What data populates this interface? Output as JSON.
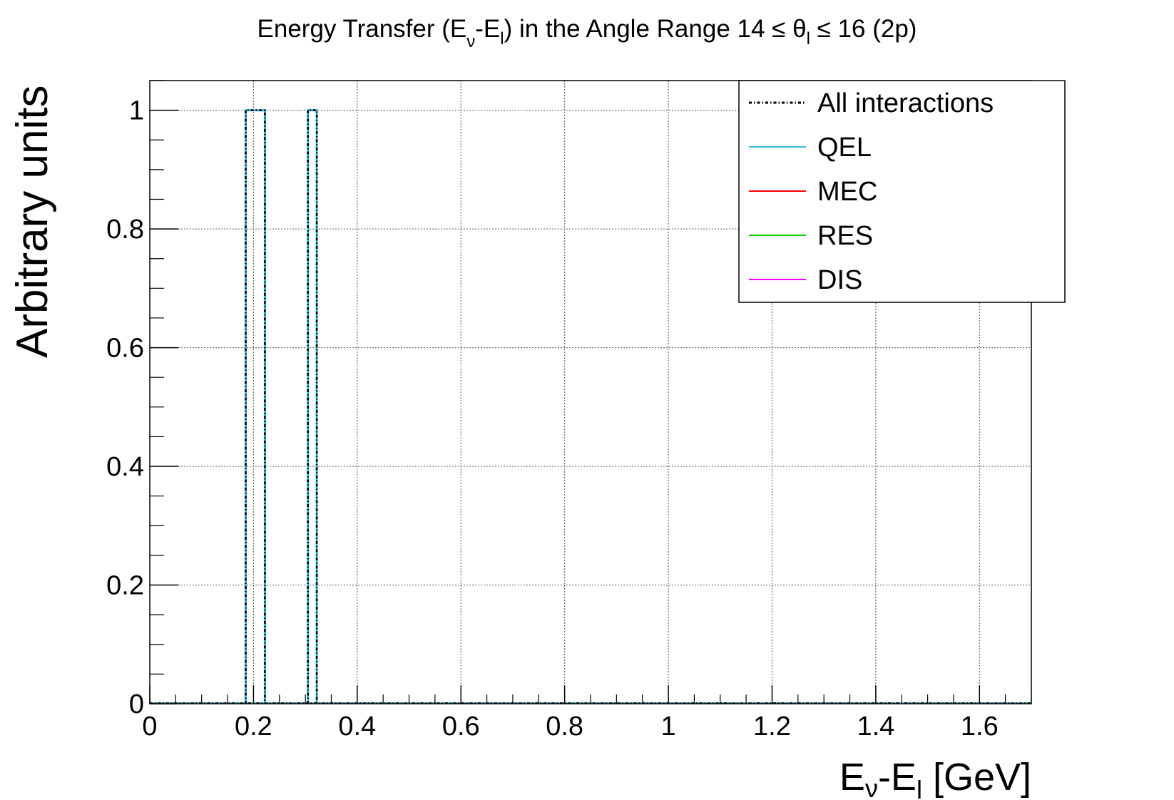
{
  "chart_data": {
    "type": "histogram",
    "title": {
      "base": "Energy Transfer (E",
      "sub_nu": "ν",
      "mid": "-E",
      "sub_l": "l",
      "rest": ") in the Angle Range 14  ≤ θ",
      "sub_l2": "l",
      "end": " ≤ 16 (2p)"
    },
    "xlabel": {
      "e1": "E",
      "sub_nu": "ν",
      "mid": "-E",
      "sub_l": "l",
      "rest": " [GeV]"
    },
    "ylabel": "Arbitrary units",
    "xlim": [
      0,
      1.7
    ],
    "ylim": [
      0,
      1.05
    ],
    "x_ticks": [
      0,
      0.2,
      0.4,
      0.6,
      0.8,
      1,
      1.2,
      1.4,
      1.6
    ],
    "x_tick_labels": [
      "0",
      "0.2",
      "0.4",
      "0.6",
      "0.8",
      "1",
      "1.2",
      "1.4",
      "1.6"
    ],
    "y_ticks": [
      0,
      0.2,
      0.4,
      0.6,
      0.8,
      1
    ],
    "y_tick_labels": [
      "0",
      "0.2",
      "0.4",
      "0.6",
      "0.8",
      "1"
    ],
    "grid": true,
    "legend_position": "top-right",
    "series": [
      {
        "name": "All interactions",
        "color": "#000000",
        "style": "dash-dot",
        "bins": [
          {
            "x0": 0.185,
            "x1": 0.222,
            "y": 1
          },
          {
            "x0": 0.305,
            "x1": 0.322,
            "y": 1
          }
        ]
      },
      {
        "name": "QEL",
        "color": "#33bbdd",
        "style": "solid",
        "bins": [
          {
            "x0": 0.185,
            "x1": 0.222,
            "y": 1
          },
          {
            "x0": 0.305,
            "x1": 0.322,
            "y": 1
          }
        ]
      },
      {
        "name": "MEC",
        "color": "#ff0000",
        "style": "solid",
        "bins": []
      },
      {
        "name": "RES",
        "color": "#00cc00",
        "style": "solid",
        "bins": []
      },
      {
        "name": "DIS",
        "color": "#ff00ff",
        "style": "solid",
        "bins": []
      }
    ]
  }
}
